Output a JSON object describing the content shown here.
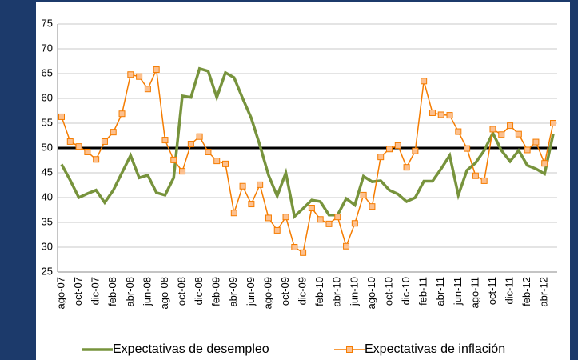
{
  "chart_data": {
    "type": "line",
    "categories": [
      "ago-07",
      null,
      "oct-07",
      null,
      "dic-07",
      null,
      "feb-08",
      null,
      "abr-08",
      null,
      "jun-08",
      null,
      "ago-08",
      null,
      "oct-08",
      null,
      "dic-08",
      null,
      "feb-09",
      null,
      "abr-09",
      null,
      "jun-09",
      null,
      "ago-09",
      null,
      "oct-09",
      null,
      "dic-09",
      null,
      "feb-10",
      null,
      "abr-10",
      null,
      "jun-10",
      null,
      "ago-10",
      null,
      "oct-10",
      null,
      "dic-10",
      null,
      "feb-11",
      null,
      "abr-11",
      null,
      "jun-11",
      null,
      "ago-11",
      null,
      "oct-11",
      null,
      "dic-11",
      null,
      "feb-12",
      null,
      "abr-12",
      null
    ],
    "series": [
      {
        "name": "Expectativas de desempleo",
        "color": "#77933c",
        "marker": false,
        "values": [
          46.7,
          43.5,
          40,
          40.8,
          41.5,
          39,
          41.5,
          45,
          48.5,
          44,
          44.5,
          41,
          40.5,
          44,
          60.5,
          60.2,
          66,
          65.5,
          60.2,
          65.2,
          64.2,
          60,
          56,
          50.5,
          44.5,
          40.3,
          45,
          36.2,
          37.8,
          39.5,
          39.2,
          36.5,
          36.5,
          39.8,
          38.5,
          44.3,
          43.2,
          43.4,
          41.5,
          40.7,
          39.2,
          40,
          43.3,
          43.3,
          45.8,
          48.5,
          40.5,
          45.5,
          47,
          49.5,
          53,
          49.5,
          47.3,
          49.5,
          46.5,
          45.8,
          44.8,
          52.8
        ]
      },
      {
        "name": "Expectativas de inflación",
        "color": "#f57c00",
        "marker": true,
        "values": [
          56.3,
          51.3,
          50.3,
          49.2,
          47.7,
          51.3,
          53.2,
          56.9,
          64.8,
          64.4,
          61.9,
          65.8,
          51.6,
          47.6,
          45.3,
          50.8,
          52.3,
          49.2,
          47.4,
          46.8,
          36.9,
          42.3,
          38.7,
          42.6,
          35.9,
          33.4,
          36.1,
          30.0,
          28.9,
          37.9,
          35.6,
          34.7,
          36.1,
          30.2,
          34.8,
          40.5,
          38.2,
          48.2,
          49.8,
          50.5,
          46.1,
          49.4,
          63.5,
          57.1,
          56.7,
          56.6,
          53.3,
          49.9,
          44.4,
          43.4,
          53.8,
          52.7,
          54.5,
          52.8,
          49.6,
          51.2,
          46.9,
          55.0
        ]
      }
    ],
    "reference_line": 50,
    "ylim": [
      25,
      75
    ],
    "yticks": [
      25,
      30,
      35,
      40,
      45,
      50,
      55,
      60,
      65,
      70,
      75
    ],
    "grid": true
  }
}
